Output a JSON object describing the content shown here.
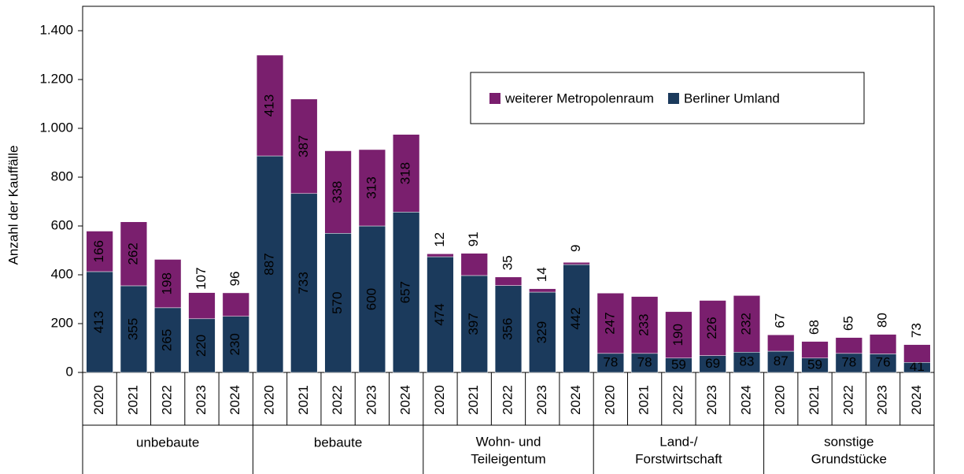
{
  "chart_data": {
    "type": "stacked_bar",
    "y_label": "Anzahl der Kauffälle",
    "groups": [
      {
        "label": [
          "unbebaute"
        ],
        "categories": [
          "2020",
          "2021",
          "2022",
          "2023",
          "2024"
        ]
      },
      {
        "label": [
          "bebaute"
        ],
        "categories": [
          "2020",
          "2021",
          "2022",
          "2023",
          "2024"
        ]
      },
      {
        "label": [
          "Wohn- und",
          "Teileigentum"
        ],
        "categories": [
          "2020",
          "2021",
          "2022",
          "2023",
          "2024"
        ]
      },
      {
        "label": [
          "Land-/",
          "Forstwirtschaft"
        ],
        "categories": [
          "2020",
          "2021",
          "2022",
          "2023",
          "2024"
        ]
      },
      {
        "label": [
          "sonstige",
          "Grundstücke"
        ],
        "categories": [
          "2020",
          "2021",
          "2022",
          "2023",
          "2024"
        ]
      }
    ],
    "series": [
      {
        "name": "Berliner Umland",
        "color": "#1b3a5c",
        "values": [
          413,
          355,
          265,
          220,
          230,
          887,
          733,
          570,
          600,
          657,
          474,
          397,
          356,
          329,
          442,
          78,
          78,
          59,
          69,
          83,
          87,
          59,
          78,
          76,
          41
        ]
      },
      {
        "name": "weiterer Metropolenraum",
        "color": "#7a1f6e",
        "values": [
          166,
          262,
          198,
          107,
          96,
          413,
          387,
          338,
          313,
          318,
          12,
          91,
          35,
          14,
          9,
          247,
          233,
          190,
          226,
          232,
          67,
          68,
          65,
          80,
          73
        ]
      }
    ],
    "ylim": [
      0,
      1500
    ],
    "yticks": [
      0,
      200,
      400,
      600,
      800,
      {
        "value": 1000,
        "label": "1.000"
      },
      {
        "value": 1200,
        "label": "1.200"
      },
      {
        "value": 1400,
        "label": "1.400"
      }
    ],
    "legend": "top-right"
  }
}
